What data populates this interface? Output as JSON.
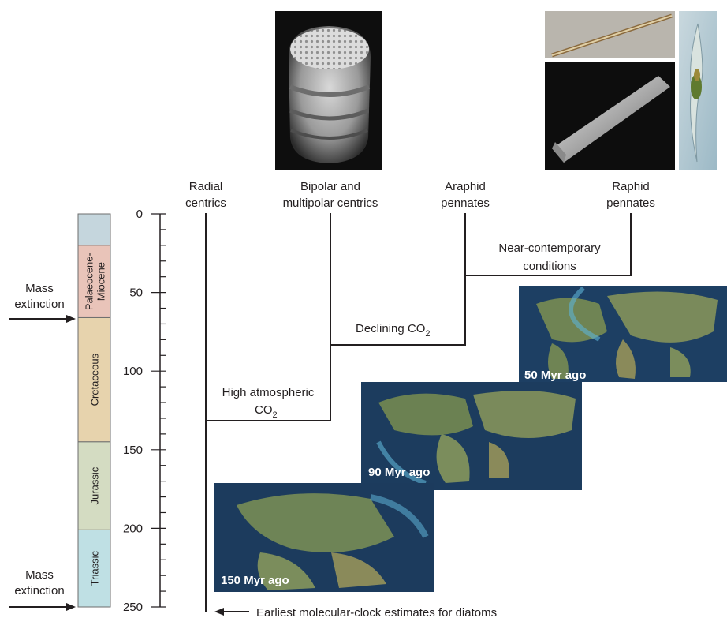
{
  "clades": [
    {
      "line1": "Radial",
      "line2": "centrics"
    },
    {
      "line1": "Bipolar and",
      "line2": "multipolar centrics"
    },
    {
      "line1": "Araphid",
      "line2": "pennates"
    },
    {
      "line1": "Raphid",
      "line2": "pennates"
    }
  ],
  "branch_conditions": {
    "near_contemporary": {
      "line1": "Near-contemporary",
      "line2": "conditions"
    },
    "declining_co2": {
      "text": "Declining CO",
      "sub": "2"
    },
    "high_co2": {
      "line1": "High atmospheric",
      "line2": "CO",
      "sub": "2"
    }
  },
  "time_axis": {
    "ticks": [
      "0",
      "50",
      "100",
      "150",
      "200",
      "250"
    ],
    "range_myr": [
      0,
      250
    ]
  },
  "periods": [
    {
      "name": "Palaeocene-",
      "name2": "Miocene",
      "start_myr": 0,
      "end_myr": 66,
      "color": "#e9c4b9"
    },
    {
      "name": "Cretaceous",
      "start_myr": 66,
      "end_myr": 145,
      "color": "#e7d3ad"
    },
    {
      "name": "Jurassic",
      "start_myr": 145,
      "end_myr": 201,
      "color": "#d4dcc2"
    },
    {
      "name": "Triassic",
      "start_myr": 201,
      "end_myr": 252,
      "color": "#bfe0e4"
    }
  ],
  "top_band_color": "#c5d6dd",
  "mass_extinctions": [
    {
      "line1": "Mass",
      "line2": "extinction",
      "myr": 66
    },
    {
      "line1": "Mass",
      "line2": "extinction",
      "myr": 250
    }
  ],
  "maps": [
    {
      "label": "50 Myr ago"
    },
    {
      "label": "90 Myr ago"
    },
    {
      "label": "150 Myr ago"
    }
  ],
  "footnote": "Earliest molecular-clock estimates for diatoms"
}
